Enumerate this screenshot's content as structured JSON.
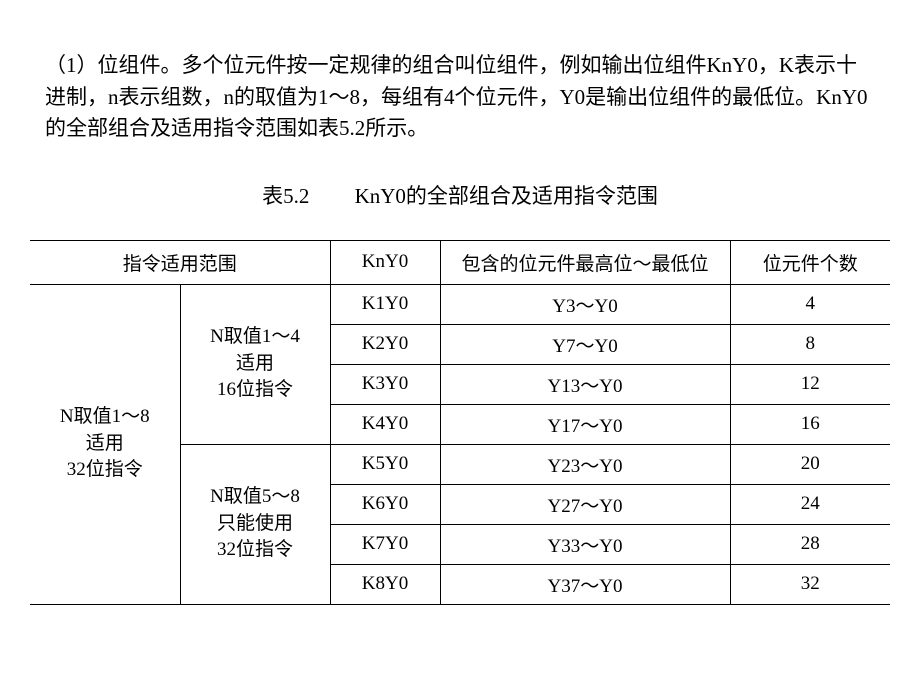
{
  "paragraph": "（1）位组件。多个位元件按一定规律的组合叫位组件，例如输出位组件KnY0，K表示十进制，n表示组数，n的取值为1～8，每组有4个位元件，Y0是输出位组件的最低位。KnY0的全部组合及适用指令范围如表5.2所示。",
  "caption": {
    "label": "表5.2",
    "title": "KnY0的全部组合及适用指令范围"
  },
  "table": {
    "headers": {
      "col1": "指令适用范围",
      "col2": "KnY0",
      "col3": "包含的位元件最高位～最低位",
      "col4": "位元件个数"
    },
    "group_outer": "N取值1～8\n适用\n32位指令",
    "group_inner_1": "N取值1～4\n适用\n16位指令",
    "group_inner_2": "N取值5～8\n只能使用\n32位指令",
    "rows": [
      {
        "kny0": "K1Y0",
        "range": "Y3～Y0",
        "count": "4"
      },
      {
        "kny0": "K2Y0",
        "range": "Y7～Y0",
        "count": "8"
      },
      {
        "kny0": "K3Y0",
        "range": "Y13～Y0",
        "count": "12"
      },
      {
        "kny0": "K4Y0",
        "range": "Y17～Y0",
        "count": "16"
      },
      {
        "kny0": "K5Y0",
        "range": "Y23～Y0",
        "count": "20"
      },
      {
        "kny0": "K6Y0",
        "range": "Y27～Y0",
        "count": "24"
      },
      {
        "kny0": "K7Y0",
        "range": "Y33～Y0",
        "count": "28"
      },
      {
        "kny0": "K8Y0",
        "range": "Y37～Y0",
        "count": "32"
      }
    ]
  },
  "styling": {
    "font_family": "SimSun",
    "body_font_size": 21,
    "table_font_size": 19,
    "text_color": "#000000",
    "background_color": "#ffffff",
    "border_color": "#000000"
  }
}
